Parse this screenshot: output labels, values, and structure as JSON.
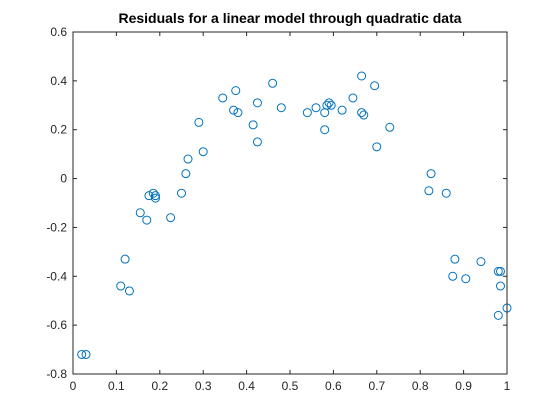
{
  "chart_data": {
    "type": "scatter",
    "title": "Residuals for a linear model through quadratic data",
    "xlabel": "",
    "ylabel": "",
    "xlim": [
      0,
      1
    ],
    "ylim": [
      -0.8,
      0.6
    ],
    "grid": false,
    "x_ticks": [
      0,
      0.1,
      0.2,
      0.3,
      0.4,
      0.5,
      0.6,
      0.7,
      0.8,
      0.9,
      1
    ],
    "x_tick_labels": [
      "0",
      "0.1",
      "0.2",
      "0.3",
      "0.4",
      "0.5",
      "0.6",
      "0.7",
      "0.8",
      "0.9",
      "1"
    ],
    "y_ticks": [
      -0.8,
      -0.6,
      -0.4,
      -0.2,
      0,
      0.2,
      0.4,
      0.6
    ],
    "y_tick_labels": [
      "-0.8",
      "-0.6",
      "-0.4",
      "-0.2",
      "0",
      "0.2",
      "0.4",
      "0.6"
    ],
    "marker": "circle",
    "color": "#0072BD",
    "x": [
      0.02,
      0.03,
      0.11,
      0.12,
      0.13,
      0.155,
      0.17,
      0.175,
      0.185,
      0.19,
      0.19,
      0.225,
      0.25,
      0.26,
      0.265,
      0.29,
      0.3,
      0.345,
      0.37,
      0.375,
      0.38,
      0.415,
      0.425,
      0.425,
      0.46,
      0.48,
      0.54,
      0.56,
      0.58,
      0.58,
      0.585,
      0.59,
      0.595,
      0.62,
      0.645,
      0.665,
      0.665,
      0.67,
      0.695,
      0.7,
      0.73,
      0.82,
      0.825,
      0.86,
      0.875,
      0.88,
      0.905,
      0.94,
      0.98,
      0.98,
      0.985,
      0.985,
      1.0
    ],
    "y": [
      -0.72,
      -0.72,
      -0.44,
      -0.33,
      -0.46,
      -0.14,
      -0.17,
      -0.07,
      -0.06,
      -0.08,
      -0.07,
      -0.16,
      -0.06,
      0.02,
      0.08,
      0.23,
      0.11,
      0.33,
      0.28,
      0.36,
      0.27,
      0.22,
      0.15,
      0.31,
      0.39,
      0.29,
      0.27,
      0.29,
      0.2,
      0.27,
      0.3,
      0.31,
      0.3,
      0.28,
      0.33,
      0.42,
      0.27,
      0.26,
      0.38,
      0.13,
      0.21,
      -0.05,
      0.02,
      -0.06,
      -0.4,
      -0.33,
      -0.41,
      -0.34,
      -0.56,
      -0.38,
      -0.44,
      -0.38,
      -0.53
    ]
  }
}
